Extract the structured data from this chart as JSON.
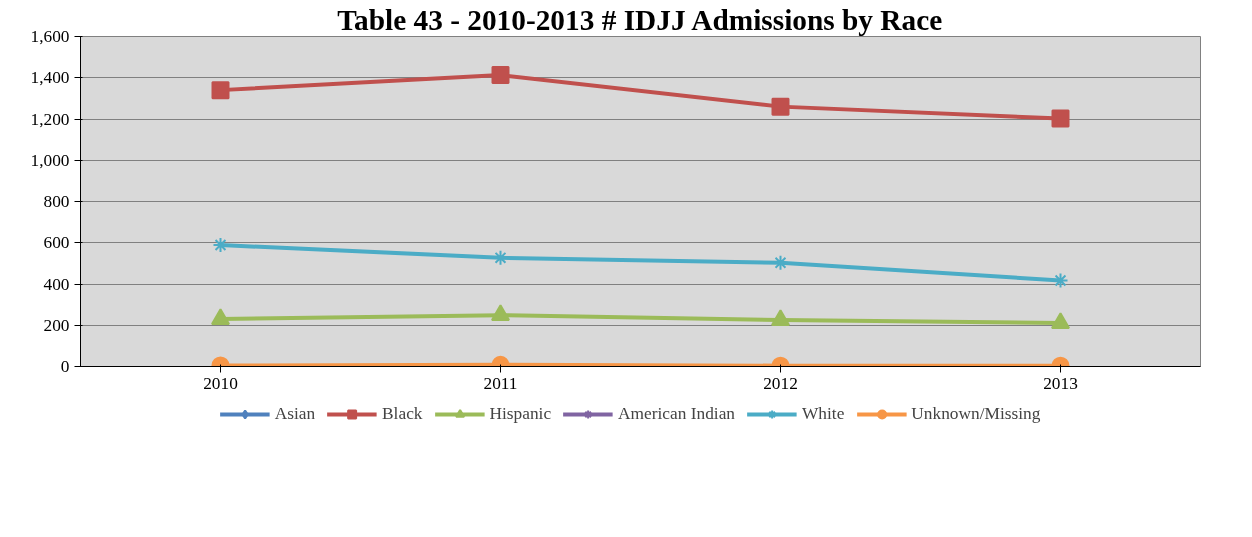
{
  "chart_data": {
    "type": "line",
    "title": "Table 43 - 2010-2013 # IDJJ Admissions by Race",
    "categories": [
      "2010",
      "2011",
      "2012",
      "2013"
    ],
    "ylim": [
      0,
      1600
    ],
    "yticks": [
      {
        "value": 0,
        "label": "0"
      },
      {
        "value": 200,
        "label": "200"
      },
      {
        "value": 400,
        "label": "400"
      },
      {
        "value": 600,
        "label": "600"
      },
      {
        "value": 800,
        "label": "800"
      },
      {
        "value": 1000,
        "label": "1,000"
      },
      {
        "value": 1200,
        "label": "1,200"
      },
      {
        "value": 1400,
        "label": "1,400"
      },
      {
        "value": 1600,
        "label": "1,600"
      }
    ],
    "grid": "y",
    "legend": "bottom",
    "line_style": "solid",
    "series": [
      {
        "name": "Asian",
        "color": "#4f81bd",
        "marker": "diamond",
        "values": [
          null,
          null,
          null,
          null
        ]
      },
      {
        "name": "Black",
        "color": "#c0504d",
        "marker": "square",
        "values": [
          1340,
          1413,
          1260,
          1202
        ]
      },
      {
        "name": "Hispanic",
        "color": "#9bbb59",
        "marker": "triangle",
        "values": [
          230,
          249,
          225,
          211
        ]
      },
      {
        "name": "American Indian",
        "color": "#8064a2",
        "marker": "cross",
        "values": [
          null,
          null,
          null,
          null
        ]
      },
      {
        "name": "White",
        "color": "#4bacc6",
        "marker": "cross",
        "values": [
          589,
          527,
          503,
          417
        ]
      },
      {
        "name": "Unknown/Missing",
        "color": "#f79646",
        "marker": "circle",
        "values": [
          5,
          8,
          4,
          4
        ]
      }
    ]
  }
}
